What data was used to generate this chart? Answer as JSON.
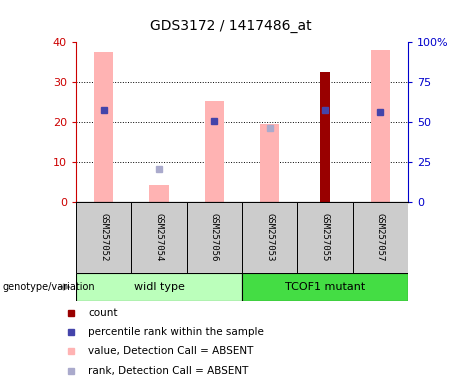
{
  "title": "GDS3172 / 1417486_at",
  "samples": [
    "GSM257052",
    "GSM257054",
    "GSM257056",
    "GSM257053",
    "GSM257055",
    "GSM257057"
  ],
  "groups_info": [
    {
      "label": "widl type",
      "start": 0,
      "end": 2,
      "color": "#aaffaa"
    },
    {
      "label": "TCOF1 mutant",
      "start": 3,
      "end": 5,
      "color": "#44ee44"
    }
  ],
  "pink_bars": [
    37.5,
    4.2,
    25.2,
    19.5,
    null,
    38.0
  ],
  "dark_red_bars": [
    null,
    null,
    null,
    null,
    32.5,
    null
  ],
  "blue_squares": [
    23.0,
    null,
    20.2,
    null,
    23.0,
    22.5
  ],
  "light_blue_squares": [
    null,
    8.2,
    null,
    18.5,
    null,
    null
  ],
  "left_ylim": [
    0,
    40
  ],
  "right_ylim": [
    0,
    100
  ],
  "left_yticks": [
    0,
    10,
    20,
    30,
    40
  ],
  "right_yticks": [
    0,
    25,
    50,
    75,
    100
  ],
  "right_yticklabels": [
    "0",
    "25",
    "50",
    "75",
    "100%"
  ],
  "left_tick_color": "#cc0000",
  "right_tick_color": "#0000cc",
  "grid_color": "black",
  "bar_width": 0.35,
  "dark_red_bar_width": 0.18,
  "pink_color": "#ffb3b3",
  "dark_red_color": "#990000",
  "blue_color": "#4444aa",
  "light_blue_color": "#aaaacc",
  "sample_box_color": "#cccccc",
  "genotype_label": "genotype/variation",
  "legend_items": [
    {
      "color": "#990000",
      "label": "count"
    },
    {
      "color": "#4444aa",
      "label": "percentile rank within the sample"
    },
    {
      "color": "#ffb3b3",
      "label": "value, Detection Call = ABSENT"
    },
    {
      "color": "#aaaacc",
      "label": "rank, Detection Call = ABSENT"
    }
  ]
}
